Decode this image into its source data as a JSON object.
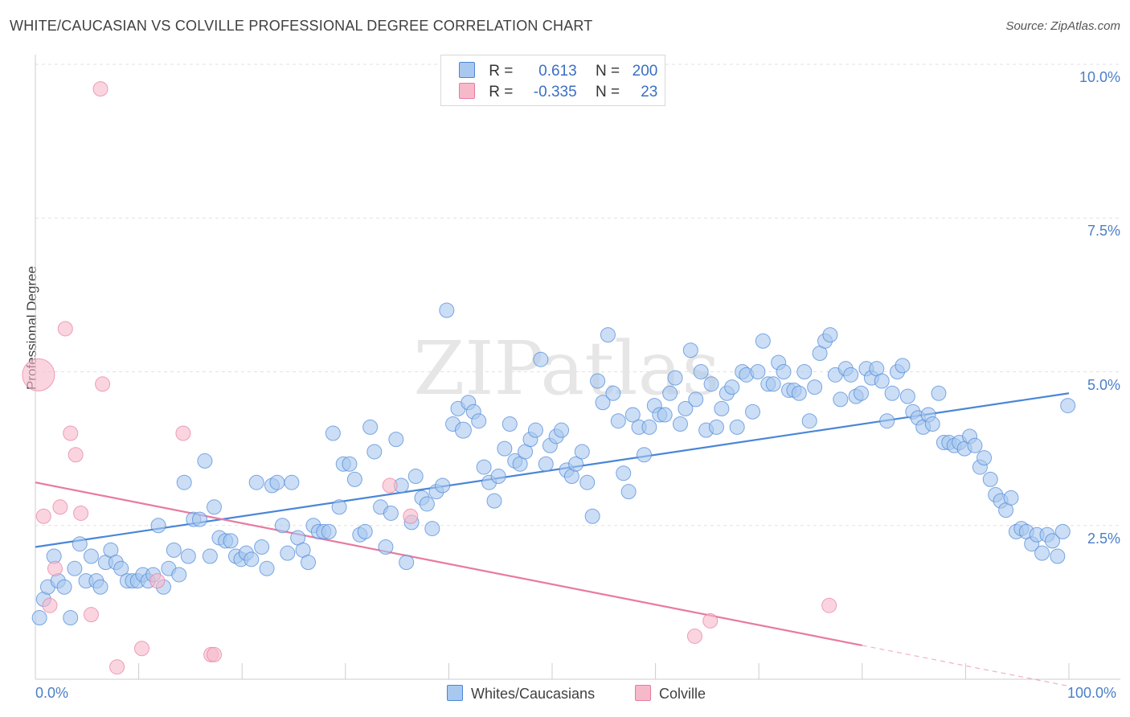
{
  "title": "WHITE/CAUCASIAN VS COLVILLE PROFESSIONAL DEGREE CORRELATION CHART",
  "source": "Source: ZipAtlas.com",
  "watermark": "ZIPatlas",
  "legend_top": {
    "rows": [
      {
        "r_label": "R =",
        "r_value": "0.613",
        "n_label": "N =",
        "n_value": "200",
        "color": "#a9c8ef"
      },
      {
        "r_label": "R =",
        "r_value": "-0.335",
        "n_label": "N =",
        "n_value": "23",
        "color": "#f6b9ca"
      }
    ]
  },
  "legend_bottom": [
    {
      "label": "Whites/Caucasians",
      "color": "#a9c8ef"
    },
    {
      "label": "Colville",
      "color": "#f6b9ca"
    }
  ],
  "chart_data": {
    "type": "scatter",
    "title": "WHITE/CAUCASIAN VS COLVILLE PROFESSIONAL DEGREE CORRELATION CHART",
    "xlabel": "",
    "ylabel": "Professional Degree",
    "xlim": [
      0,
      100
    ],
    "ylim": [
      0,
      10
    ],
    "x_tick_labels": [
      "0.0%",
      "100.0%"
    ],
    "y_ticks": [
      2.5,
      5.0,
      7.5,
      10.0
    ],
    "y_tick_labels": [
      "2.5%",
      "5.0%",
      "7.5%",
      "10.0%"
    ],
    "grid": "horizontal dashed",
    "legend_position": "top-center",
    "series": [
      {
        "name": "Whites/Caucasians",
        "color": "#4a86d8",
        "fill": "#a9c8ef",
        "trend": {
          "x0": 0,
          "y0": 2.15,
          "x1": 100,
          "y1": 4.65
        },
        "points": [
          [
            0.4,
            1.0
          ],
          [
            0.8,
            1.3
          ],
          [
            1.2,
            1.5
          ],
          [
            1.8,
            2.0
          ],
          [
            2.2,
            1.6
          ],
          [
            2.8,
            1.5
          ],
          [
            3.4,
            1.0
          ],
          [
            3.8,
            1.8
          ],
          [
            4.3,
            2.2
          ],
          [
            4.9,
            1.6
          ],
          [
            5.4,
            2.0
          ],
          [
            5.9,
            1.6
          ],
          [
            6.3,
            1.5
          ],
          [
            6.8,
            1.9
          ],
          [
            7.3,
            2.1
          ],
          [
            7.8,
            1.9
          ],
          [
            8.3,
            1.8
          ],
          [
            8.9,
            1.6
          ],
          [
            9.4,
            1.6
          ],
          [
            9.9,
            1.6
          ],
          [
            10.4,
            1.7
          ],
          [
            10.9,
            1.6
          ],
          [
            11.4,
            1.7
          ],
          [
            11.9,
            2.5
          ],
          [
            12.4,
            1.5
          ],
          [
            12.9,
            1.8
          ],
          [
            13.4,
            2.1
          ],
          [
            13.9,
            1.7
          ],
          [
            14.4,
            3.2
          ],
          [
            14.8,
            2.0
          ],
          [
            15.3,
            2.6
          ],
          [
            15.9,
            2.6
          ],
          [
            16.4,
            3.55
          ],
          [
            16.9,
            2.0
          ],
          [
            17.3,
            2.8
          ],
          [
            17.8,
            2.3
          ],
          [
            18.4,
            2.25
          ],
          [
            18.9,
            2.25
          ],
          [
            19.4,
            2.0
          ],
          [
            19.9,
            1.95
          ],
          [
            20.4,
            2.05
          ],
          [
            20.9,
            1.95
          ],
          [
            21.4,
            3.2
          ],
          [
            21.9,
            2.15
          ],
          [
            22.4,
            1.8
          ],
          [
            22.9,
            3.15
          ],
          [
            23.4,
            3.2
          ],
          [
            23.9,
            2.5
          ],
          [
            24.4,
            2.05
          ],
          [
            24.8,
            3.2
          ],
          [
            25.4,
            2.3
          ],
          [
            25.9,
            2.1
          ],
          [
            26.4,
            1.9
          ],
          [
            26.9,
            2.5
          ],
          [
            27.4,
            2.4
          ],
          [
            27.9,
            2.4
          ],
          [
            28.4,
            2.4
          ],
          [
            28.8,
            4.0
          ],
          [
            29.4,
            2.8
          ],
          [
            29.8,
            3.5
          ],
          [
            30.4,
            3.5
          ],
          [
            30.9,
            3.25
          ],
          [
            31.4,
            2.35
          ],
          [
            31.9,
            2.4
          ],
          [
            32.4,
            4.1
          ],
          [
            32.8,
            3.7
          ],
          [
            33.4,
            2.8
          ],
          [
            33.9,
            2.15
          ],
          [
            34.4,
            2.7
          ],
          [
            34.9,
            3.9
          ],
          [
            35.4,
            3.15
          ],
          [
            35.9,
            1.9
          ],
          [
            36.4,
            2.55
          ],
          [
            36.8,
            3.3
          ],
          [
            37.4,
            2.95
          ],
          [
            37.9,
            2.85
          ],
          [
            38.4,
            2.45
          ],
          [
            38.8,
            3.05
          ],
          [
            39.4,
            3.15
          ],
          [
            39.8,
            6.0
          ],
          [
            40.4,
            4.15
          ],
          [
            40.9,
            4.4
          ],
          [
            41.4,
            4.05
          ],
          [
            41.9,
            4.5
          ],
          [
            42.4,
            4.35
          ],
          [
            42.9,
            4.2
          ],
          [
            43.4,
            3.45
          ],
          [
            43.9,
            3.2
          ],
          [
            44.4,
            2.9
          ],
          [
            44.8,
            3.3
          ],
          [
            45.4,
            3.75
          ],
          [
            45.9,
            4.15
          ],
          [
            46.4,
            3.55
          ],
          [
            46.9,
            3.5
          ],
          [
            47.4,
            3.7
          ],
          [
            47.9,
            3.9
          ],
          [
            48.4,
            4.05
          ],
          [
            48.9,
            5.2
          ],
          [
            49.4,
            3.5
          ],
          [
            49.8,
            3.8
          ],
          [
            50.4,
            3.95
          ],
          [
            50.9,
            4.05
          ],
          [
            51.4,
            3.4
          ],
          [
            51.9,
            3.3
          ],
          [
            52.3,
            3.5
          ],
          [
            52.9,
            3.7
          ],
          [
            53.4,
            3.2
          ],
          [
            53.9,
            2.65
          ],
          [
            54.4,
            4.85
          ],
          [
            54.9,
            4.5
          ],
          [
            55.4,
            5.6
          ],
          [
            55.9,
            4.65
          ],
          [
            56.4,
            4.2
          ],
          [
            56.9,
            3.35
          ],
          [
            57.4,
            3.05
          ],
          [
            57.8,
            4.3
          ],
          [
            58.4,
            4.1
          ],
          [
            58.9,
            3.65
          ],
          [
            59.4,
            4.1
          ],
          [
            59.9,
            4.45
          ],
          [
            60.4,
            4.3
          ],
          [
            60.9,
            4.3
          ],
          [
            61.4,
            4.65
          ],
          [
            61.9,
            4.9
          ],
          [
            62.4,
            4.15
          ],
          [
            62.9,
            4.4
          ],
          [
            63.4,
            5.35
          ],
          [
            63.9,
            4.55
          ],
          [
            64.4,
            5.0
          ],
          [
            64.9,
            4.05
          ],
          [
            65.4,
            4.8
          ],
          [
            65.9,
            4.1
          ],
          [
            66.4,
            4.4
          ],
          [
            66.9,
            4.65
          ],
          [
            67.4,
            4.75
          ],
          [
            67.9,
            4.1
          ],
          [
            68.4,
            5.0
          ],
          [
            68.8,
            4.95
          ],
          [
            69.4,
            4.35
          ],
          [
            69.9,
            5.0
          ],
          [
            70.4,
            5.5
          ],
          [
            70.9,
            4.8
          ],
          [
            71.4,
            4.8
          ],
          [
            71.9,
            5.15
          ],
          [
            72.4,
            5.0
          ],
          [
            72.9,
            4.7
          ],
          [
            73.4,
            4.7
          ],
          [
            73.9,
            4.65
          ],
          [
            74.4,
            5.0
          ],
          [
            74.9,
            4.2
          ],
          [
            75.4,
            4.75
          ],
          [
            75.9,
            5.3
          ],
          [
            76.4,
            5.5
          ],
          [
            76.9,
            5.6
          ],
          [
            77.4,
            4.95
          ],
          [
            77.9,
            4.55
          ],
          [
            78.4,
            5.05
          ],
          [
            78.9,
            4.95
          ],
          [
            79.4,
            4.6
          ],
          [
            79.9,
            4.65
          ],
          [
            80.4,
            5.05
          ],
          [
            80.9,
            4.9
          ],
          [
            81.4,
            5.05
          ],
          [
            81.9,
            4.85
          ],
          [
            82.4,
            4.2
          ],
          [
            82.9,
            4.65
          ],
          [
            83.4,
            5.0
          ],
          [
            83.9,
            5.1
          ],
          [
            84.4,
            4.6
          ],
          [
            84.9,
            4.35
          ],
          [
            85.4,
            4.25
          ],
          [
            85.9,
            4.1
          ],
          [
            86.4,
            4.3
          ],
          [
            86.8,
            4.15
          ],
          [
            87.4,
            4.65
          ],
          [
            87.9,
            3.85
          ],
          [
            88.4,
            3.85
          ],
          [
            88.9,
            3.8
          ],
          [
            89.4,
            3.85
          ],
          [
            89.9,
            3.75
          ],
          [
            90.4,
            3.95
          ],
          [
            90.9,
            3.8
          ],
          [
            91.4,
            3.45
          ],
          [
            91.8,
            3.6
          ],
          [
            92.4,
            3.25
          ],
          [
            92.9,
            3.0
          ],
          [
            93.4,
            2.9
          ],
          [
            93.9,
            2.75
          ],
          [
            94.4,
            2.95
          ],
          [
            94.9,
            2.4
          ],
          [
            95.4,
            2.45
          ],
          [
            95.9,
            2.4
          ],
          [
            96.4,
            2.2
          ],
          [
            96.9,
            2.35
          ],
          [
            97.4,
            2.05
          ],
          [
            97.9,
            2.35
          ],
          [
            98.4,
            2.25
          ],
          [
            98.9,
            2.0
          ],
          [
            99.4,
            2.4
          ],
          [
            99.9,
            4.45
          ]
        ]
      },
      {
        "name": "Colville",
        "color": "#e87aa0",
        "fill": "#f6b9ca",
        "trend": {
          "x0": 0,
          "y0": 3.2,
          "x1": 80,
          "y1": 0.55,
          "dash_to_x": 100
        },
        "points": [
          [
            0.3,
            4.95
          ],
          [
            0.8,
            2.65
          ],
          [
            1.4,
            1.2
          ],
          [
            1.9,
            1.8
          ],
          [
            2.4,
            2.8
          ],
          [
            2.9,
            5.7
          ],
          [
            3.4,
            4.0
          ],
          [
            3.9,
            3.65
          ],
          [
            4.4,
            2.7
          ],
          [
            5.4,
            1.05
          ],
          [
            6.3,
            9.6
          ],
          [
            6.5,
            4.8
          ],
          [
            7.9,
            0.2
          ],
          [
            10.3,
            0.5
          ],
          [
            11.8,
            1.6
          ],
          [
            14.3,
            4.0
          ],
          [
            17.0,
            0.4
          ],
          [
            17.3,
            0.4
          ],
          [
            34.3,
            3.15
          ],
          [
            36.3,
            2.65
          ],
          [
            63.8,
            0.7
          ],
          [
            65.3,
            0.95
          ],
          [
            76.8,
            1.2
          ]
        ]
      }
    ]
  }
}
